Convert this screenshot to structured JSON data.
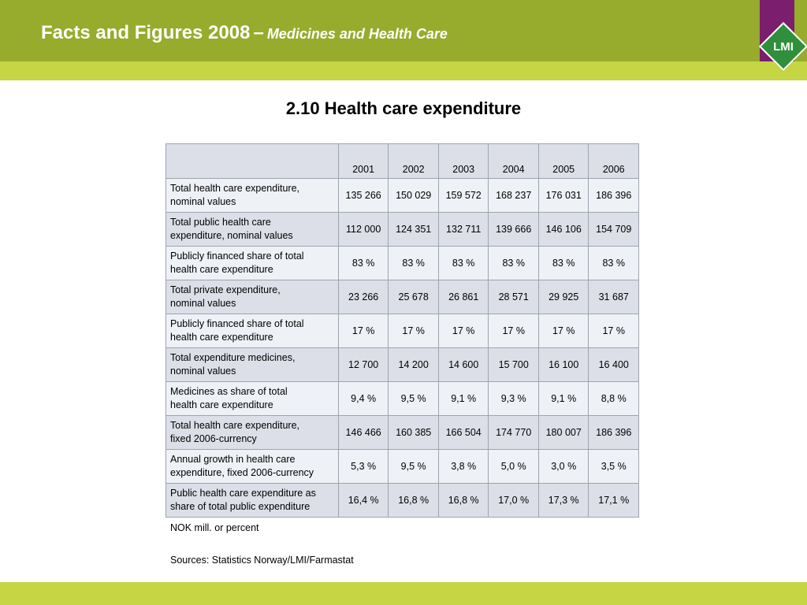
{
  "header": {
    "title": "Facts and Figures 2008",
    "separator": "–",
    "subtitle": "Medicines and Health Care",
    "logo_text": "LMI"
  },
  "slide": {
    "title": "2.10 Health care expenditure"
  },
  "table": {
    "columns": [
      "2001",
      "2002",
      "2003",
      "2004",
      "2005",
      "2006"
    ],
    "rows": [
      {
        "label": [
          "Total health care expenditure,",
          "nominal values"
        ],
        "values": [
          "135 266",
          "150 029",
          "159 572",
          "168 237",
          "176 031",
          "186 396"
        ]
      },
      {
        "label": [
          "Total public health care",
          "expenditure, nominal values"
        ],
        "values": [
          "112 000",
          "124 351",
          "132 711",
          "139 666",
          "146 106",
          "154 709"
        ]
      },
      {
        "label": [
          "Publicly financed share of total",
          "health care expenditure"
        ],
        "values": [
          "83 %",
          "83 %",
          "83 %",
          "83 %",
          "83 %",
          "83 %"
        ]
      },
      {
        "label": [
          "Total private expenditure,",
          "nominal values"
        ],
        "values": [
          "23 266",
          "25 678",
          "26 861",
          "28 571",
          "29 925",
          "31 687"
        ]
      },
      {
        "label": [
          "Publicly financed share of total",
          "health care expenditure"
        ],
        "values": [
          "17 %",
          "17 %",
          "17 %",
          "17 %",
          "17 %",
          "17 %"
        ]
      },
      {
        "label": [
          "Total expenditure medicines,",
          "nominal values"
        ],
        "values": [
          "12 700",
          "14 200",
          "14 600",
          "15 700",
          "16 100",
          "16 400"
        ]
      },
      {
        "label": [
          "Medicines as share of total",
          "health care expenditure"
        ],
        "values": [
          "9,4 %",
          "9,5 %",
          "9,1 %",
          "9,3 %",
          "9,1 %",
          "8,8 %"
        ]
      },
      {
        "label": [
          "Total health care expenditure,",
          "fixed 2006-currency"
        ],
        "values": [
          "146 466",
          "160 385",
          "166 504",
          "174 770",
          "180 007",
          "186 396"
        ]
      },
      {
        "label": [
          "Annual growth in health care",
          "expenditure, fixed 2006-currency"
        ],
        "values": [
          "5,3 %",
          "9,5 %",
          "3,8 %",
          "5,0 %",
          "3,0 %",
          "3,5 %"
        ]
      },
      {
        "label": [
          "Public health care expenditure as",
          "share of total public expenditure"
        ],
        "values": [
          "16,4 %",
          "16,8 %",
          "16,8 %",
          "17,0 %",
          "17,3 %",
          "17,1 %"
        ]
      }
    ],
    "note": "NOK mill. or percent",
    "source": "Sources: Statistics Norway/LMI/Farmastat"
  },
  "colors": {
    "header_bar": "#97ab2d",
    "header_stripe": "#c5d543",
    "logo_column": "#7b1e6e",
    "logo_diamond": "#2f8f3a",
    "row_light": "#eef1f6",
    "row_dark": "#dcdfe8"
  }
}
